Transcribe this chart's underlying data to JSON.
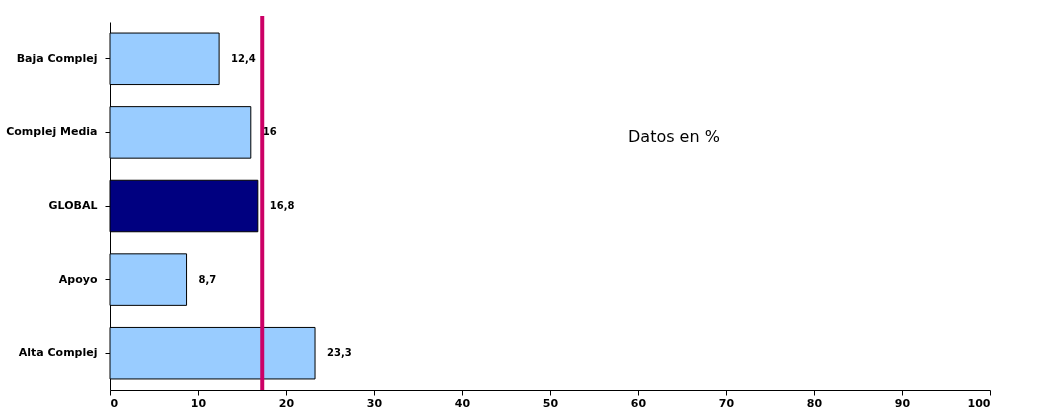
{
  "chart_data": {
    "type": "bar",
    "orientation": "horizontal",
    "categories": [
      "Baja Complej",
      "Complej Media",
      "GLOBAL",
      "Apoyo",
      "Alta Complej"
    ],
    "values": [
      12.4,
      16,
      16.8,
      8.7,
      23.3
    ],
    "colors": [
      "#99ccff",
      "#99ccff",
      "#000080",
      "#99ccff",
      "#99ccff"
    ],
    "value_labels": [
      "12,4",
      "16",
      "16,8",
      "8,7",
      "23,3"
    ],
    "xlim": [
      0,
      100
    ],
    "xticks": [
      0,
      10,
      20,
      30,
      40,
      50,
      60,
      70,
      80,
      90,
      100
    ],
    "grid": false,
    "ref_lines": [
      {
        "axis": "x",
        "value": 17.3,
        "color": "#cc0066"
      }
    ],
    "annotations": [
      "Datos en %"
    ]
  }
}
